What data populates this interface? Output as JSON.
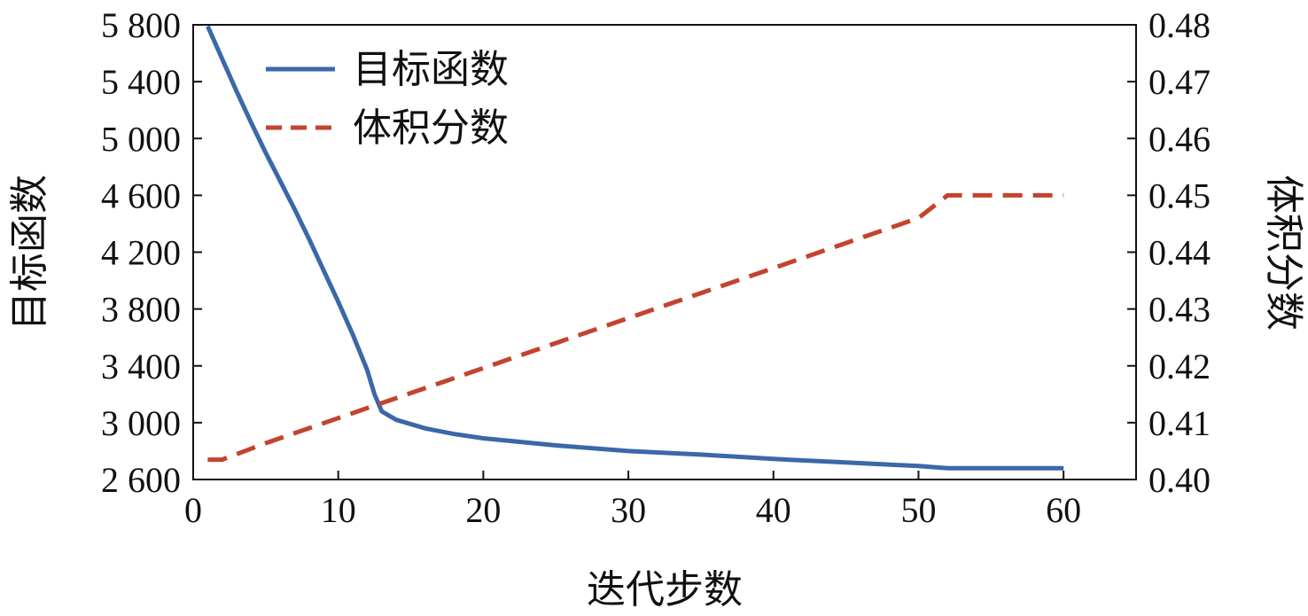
{
  "chart_data": {
    "type": "line",
    "title": "",
    "xlabel": "迭代步数",
    "ylabel_left": "目标函数",
    "ylabel_right": "体积分数",
    "xlim": [
      0,
      65
    ],
    "ylim_left": [
      2600,
      5800
    ],
    "ylim_right": [
      0.4,
      0.48
    ],
    "x_ticks": [
      {
        "value": 0,
        "label": "0"
      },
      {
        "value": 10,
        "label": "10"
      },
      {
        "value": 20,
        "label": "20"
      },
      {
        "value": 30,
        "label": "30"
      },
      {
        "value": 40,
        "label": "40"
      },
      {
        "value": 50,
        "label": "50"
      },
      {
        "value": 60,
        "label": "60"
      }
    ],
    "y_left_ticks": [
      {
        "value": 2600,
        "label": "2 600"
      },
      {
        "value": 3000,
        "label": "3 000"
      },
      {
        "value": 3400,
        "label": "3 400"
      },
      {
        "value": 3800,
        "label": "3 800"
      },
      {
        "value": 4200,
        "label": "4 200"
      },
      {
        "value": 4600,
        "label": "4 600"
      },
      {
        "value": 5000,
        "label": "5 000"
      },
      {
        "value": 5400,
        "label": "5 400"
      },
      {
        "value": 5800,
        "label": "5 800"
      }
    ],
    "y_right_ticks": [
      {
        "value": 0.4,
        "label": "0.40"
      },
      {
        "value": 0.41,
        "label": "0.41"
      },
      {
        "value": 0.42,
        "label": "0.42"
      },
      {
        "value": 0.43,
        "label": "0.43"
      },
      {
        "value": 0.44,
        "label": "0.44"
      },
      {
        "value": 0.45,
        "label": "0.45"
      },
      {
        "value": 0.46,
        "label": "0.46"
      },
      {
        "value": 0.47,
        "label": "0.47"
      },
      {
        "value": 0.48,
        "label": "0.48"
      }
    ],
    "grid": false,
    "legend_position": "top-left",
    "series": [
      {
        "name": "目标函数",
        "axis": "left",
        "color": "#3a68a8",
        "style": "solid",
        "points": [
          [
            1,
            5790
          ],
          [
            2,
            5560
          ],
          [
            3,
            5330
          ],
          [
            4,
            5110
          ],
          [
            5,
            4900
          ],
          [
            6,
            4700
          ],
          [
            7,
            4500
          ],
          [
            8,
            4290
          ],
          [
            9,
            4070
          ],
          [
            10,
            3850
          ],
          [
            11,
            3620
          ],
          [
            12,
            3370
          ],
          [
            12.5,
            3200
          ],
          [
            13,
            3080
          ],
          [
            14,
            3020
          ],
          [
            16,
            2960
          ],
          [
            18,
            2920
          ],
          [
            20,
            2890
          ],
          [
            25,
            2840
          ],
          [
            30,
            2800
          ],
          [
            35,
            2775
          ],
          [
            40,
            2745
          ],
          [
            45,
            2720
          ],
          [
            50,
            2695
          ],
          [
            52,
            2680
          ],
          [
            55,
            2680
          ],
          [
            60,
            2680
          ]
        ]
      },
      {
        "name": "体积分数",
        "axis": "right",
        "color": "#c4432f",
        "style": "dashed",
        "points": [
          [
            1,
            0.4035
          ],
          [
            2,
            0.4035
          ],
          [
            5,
            0.4064
          ],
          [
            10,
            0.4108
          ],
          [
            15,
            0.4152
          ],
          [
            20,
            0.4196
          ],
          [
            25,
            0.424
          ],
          [
            30,
            0.4284
          ],
          [
            35,
            0.4328
          ],
          [
            40,
            0.4372
          ],
          [
            45,
            0.4416
          ],
          [
            50,
            0.446
          ],
          [
            52,
            0.45
          ],
          [
            55,
            0.45
          ],
          [
            60,
            0.45
          ]
        ]
      }
    ]
  }
}
